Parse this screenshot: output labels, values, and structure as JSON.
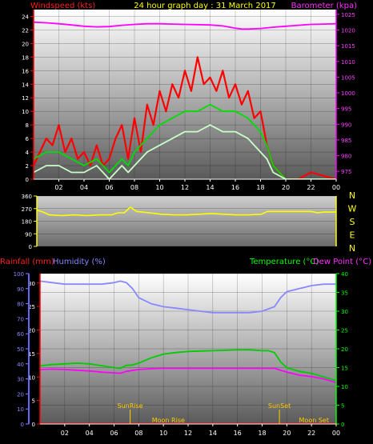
{
  "chart_data": [
    {
      "type": "line",
      "panel": "wind",
      "title": "24 hour graph day : 31 March 2017",
      "left_label": "Windspeed (kts)",
      "right_label": "Barometer (kpa)",
      "y_left": {
        "range": [
          0,
          25
        ],
        "ticks": [
          "0",
          "2",
          "4",
          "6",
          "8",
          "10",
          "12",
          "14",
          "16",
          "18",
          "20",
          "22",
          "24"
        ]
      },
      "y_right": {
        "range": [
          972.5,
          1026.5
        ],
        "ticks": [
          "975",
          "980",
          "985",
          "990",
          "995",
          "1000",
          "1005",
          "1010",
          "1015",
          "1020",
          "1025"
        ]
      },
      "x": {
        "range": [
          0,
          24
        ],
        "ticks": [
          "02",
          "04",
          "06",
          "08",
          "10",
          "12",
          "14",
          "16",
          "18",
          "20",
          "22",
          "00"
        ]
      },
      "series": [
        {
          "name": "gust",
          "color": "#ff0000",
          "axis": "left",
          "x": [
            0,
            1,
            1.5,
            2,
            2.5,
            3,
            3.5,
            4,
            4.5,
            5,
            5.5,
            6,
            6.5,
            7,
            7.5,
            8,
            8.5,
            9,
            9.5,
            10,
            10.5,
            11,
            11.5,
            12,
            12.5,
            13,
            13.5,
            14,
            14.5,
            15,
            15.5,
            16,
            16.5,
            17,
            17.5,
            18,
            18.5,
            19,
            20,
            21,
            22,
            24
          ],
          "y": [
            2,
            6,
            5,
            8,
            4,
            6,
            3,
            4,
            2,
            5,
            2,
            3,
            6,
            8,
            3,
            9,
            4,
            11,
            8,
            13,
            10,
            14,
            12,
            16,
            13,
            18,
            14,
            15,
            13,
            16,
            12,
            14,
            11,
            13,
            9,
            10,
            5,
            2,
            0,
            0,
            1,
            0
          ]
        },
        {
          "name": "average",
          "color": "#00dd00",
          "axis": "left",
          "x": [
            0,
            1,
            2,
            3,
            4,
            5,
            6,
            7,
            7.5,
            8,
            9,
            10,
            11,
            12,
            13,
            14,
            15,
            16,
            17,
            18,
            18.5,
            19,
            20,
            24
          ],
          "y": [
            3,
            4,
            4,
            3,
            2,
            3,
            1,
            3,
            2,
            4,
            6,
            8,
            9,
            10,
            10,
            11,
            10,
            10,
            9,
            7,
            5,
            2,
            0,
            0
          ]
        },
        {
          "name": "wind",
          "color": "#c8ffc8",
          "axis": "left",
          "x": [
            0,
            1,
            2,
            3,
            4,
            5,
            6,
            7,
            7.5,
            8,
            9,
            10,
            11,
            12,
            13,
            14,
            15,
            16,
            17,
            18,
            18.5,
            19,
            20,
            24
          ],
          "y": [
            1,
            2,
            2,
            1,
            1,
            2,
            0,
            2,
            1,
            2,
            4,
            5,
            6,
            7,
            7,
            8,
            7,
            7,
            6,
            4,
            3,
            1,
            0,
            0
          ]
        },
        {
          "name": "barometer",
          "color": "#ff00ff",
          "axis": "right",
          "x": [
            0,
            1,
            2,
            3,
            4,
            5,
            6,
            7,
            8,
            9,
            10,
            11,
            12,
            13,
            14,
            15,
            16,
            16.5,
            17,
            18,
            19,
            20,
            21,
            22,
            23,
            24
          ],
          "y": [
            1022.5,
            1022.3,
            1022,
            1021.6,
            1021.2,
            1021,
            1021.1,
            1021.5,
            1021.8,
            1022,
            1022,
            1021.9,
            1021.8,
            1021.7,
            1021.6,
            1021.3,
            1020.6,
            1020.3,
            1020.3,
            1020.5,
            1020.9,
            1021.2,
            1021.5,
            1021.8,
            1021.9,
            1022
          ]
        }
      ]
    },
    {
      "type": "line",
      "panel": "direction",
      "y_left": {
        "range": [
          0,
          360
        ],
        "ticks": [
          "0",
          "90",
          "180",
          "270",
          "360"
        ]
      },
      "compass_labels": [
        "N",
        "W",
        "S",
        "E",
        "N"
      ],
      "series": [
        {
          "name": "direction",
          "color": "#ffff00",
          "axis": "left",
          "x": [
            0,
            0.5,
            1,
            2,
            3,
            4,
            5,
            6,
            6.5,
            7,
            7.5,
            8,
            9,
            10,
            11,
            12,
            13,
            14,
            15,
            16,
            17,
            18,
            18.5,
            19,
            20,
            21,
            22,
            22.5,
            23,
            24
          ],
          "y": [
            260,
            245,
            225,
            220,
            225,
            220,
            225,
            225,
            240,
            240,
            280,
            250,
            240,
            230,
            225,
            225,
            230,
            235,
            230,
            225,
            225,
            230,
            250,
            250,
            250,
            250,
            250,
            240,
            245,
            245
          ]
        }
      ]
    },
    {
      "type": "line",
      "panel": "temp",
      "left_label_rain": "Rainfall (mm)",
      "left_label_humidity": "Humidity (%)",
      "right_label_temp": "Temperature (°C)",
      "right_label_dew": "Dew Point (°C)",
      "y_rain": {
        "range": [
          0,
          32
        ],
        "ticks": [
          "0",
          "5",
          "10",
          "15",
          "20",
          "25",
          "30"
        ]
      },
      "y_humidity": {
        "range": [
          0,
          100
        ],
        "ticks": [
          "0",
          "10",
          "20",
          "30",
          "40",
          "50",
          "60",
          "70",
          "80",
          "90",
          "100"
        ]
      },
      "y_temp": {
        "range": [
          0,
          40
        ],
        "ticks": [
          "0",
          "5",
          "10",
          "15",
          "20",
          "25",
          "30",
          "35",
          "40"
        ]
      },
      "annotations": [
        {
          "text": "SunRise",
          "x": 7.3,
          "row": "upper"
        },
        {
          "text": "SunSet",
          "x": 19.4,
          "row": "upper"
        },
        {
          "text": "Moon Rise",
          "x": 10.4,
          "row": "lower"
        },
        {
          "text": "Moon Set",
          "x": 22.2,
          "row": "lower"
        }
      ],
      "series": [
        {
          "name": "Humidity",
          "color": "#8888ff",
          "axis": "humidity",
          "x": [
            0,
            1,
            2,
            3,
            4,
            5,
            6,
            6.5,
            7,
            7.5,
            8,
            9,
            10,
            11,
            12,
            13,
            14,
            15,
            16,
            17,
            18,
            19,
            19.5,
            20,
            21,
            22,
            23,
            24
          ],
          "y": [
            95,
            94,
            93,
            93,
            93,
            93,
            94,
            95,
            94,
            90,
            84,
            80,
            78,
            77,
            76,
            75,
            74,
            74,
            74,
            74,
            75,
            78,
            84,
            88,
            90,
            92,
            93,
            93
          ]
        },
        {
          "name": "Temperature",
          "color": "#00cc00",
          "axis": "temp",
          "x": [
            0,
            1,
            2,
            3,
            4,
            5,
            6,
            6.5,
            7,
            7.5,
            8,
            9,
            10,
            11,
            12,
            13,
            14,
            15,
            16,
            17,
            18,
            18.5,
            19,
            19.5,
            20,
            21,
            22,
            23,
            24
          ],
          "y": [
            15.5,
            15.8,
            16,
            16.2,
            16,
            15.5,
            15,
            14.8,
            15.6,
            15.7,
            16.2,
            17.6,
            18.6,
            19,
            19.3,
            19.4,
            19.5,
            19.6,
            19.7,
            19.7,
            19.5,
            19.5,
            19,
            16.5,
            15,
            14,
            13.5,
            12.5,
            11.5
          ]
        },
        {
          "name": "Dew Point",
          "color": "#ff00ff",
          "axis": "temp",
          "x": [
            0,
            1,
            2,
            3,
            4,
            5,
            6,
            6.5,
            7,
            8,
            9,
            10,
            11,
            12,
            13,
            14,
            15,
            16,
            17,
            18,
            19,
            20,
            21,
            22,
            23,
            24
          ],
          "y": [
            14.5,
            14.6,
            14.5,
            14.3,
            14.1,
            13.8,
            13.6,
            13.5,
            14,
            14.5,
            14.7,
            14.8,
            14.8,
            14.8,
            14.8,
            14.8,
            14.8,
            14.8,
            14.8,
            14.8,
            14.8,
            13.8,
            13,
            12.6,
            12,
            11
          ]
        },
        {
          "name": "Rainfall",
          "color": "#ff0000",
          "axis": "rain",
          "x": [
            0,
            24
          ],
          "y": [
            0,
            0
          ]
        }
      ]
    }
  ]
}
